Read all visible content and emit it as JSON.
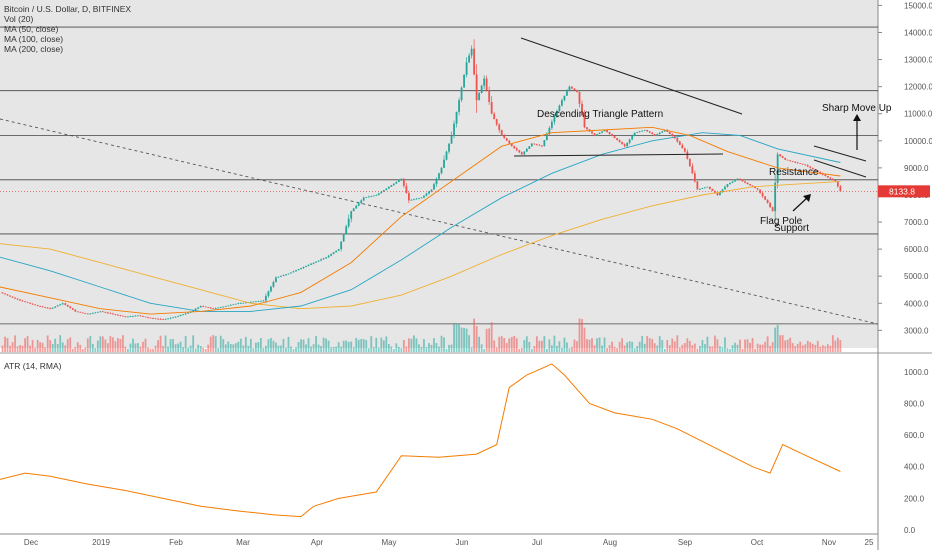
{
  "legend": {
    "symbol": "Bitcoin / U.S. Dollar, D, BITFINEX",
    "indicators": [
      "Vol (20)",
      "MA (50, close)",
      "MA (100, close)",
      "MA (200, close)"
    ]
  },
  "atr_label": "ATR (14, RMA)",
  "colors": {
    "price_bg": "#e6e6e6",
    "up": "#26a69a",
    "down": "#ef5350",
    "ma50": "#f57c00",
    "ma100": "#26a6c4",
    "ma200": "#f0b030",
    "atr": "#f57c00",
    "last_price": "#e53935"
  },
  "chart_data": [
    {
      "type": "candlestick",
      "title": "Bitcoin / U.S. Dollar, D, BITFINEX",
      "y_axis_ticks": [
        3000,
        4000,
        5000,
        6000,
        7000,
        8000,
        9000,
        10000,
        11000,
        12000,
        13000,
        14000,
        15000
      ],
      "y_axis_tick_labels": [
        "3000.0",
        "4000.0",
        "5000.0",
        "6000.0",
        "7000.0",
        "8000.0",
        "9000.0",
        "10000.0",
        "11000.0",
        "12000.0",
        "13000.0",
        "14000.0",
        "15000.0"
      ],
      "ylim": [
        2200,
        15200
      ],
      "x_axis_labels": [
        "Dec",
        "2019",
        "Feb",
        "Mar",
        "Apr",
        "May",
        "Jun",
        "Jul",
        "Aug",
        "Sep",
        "Oct",
        "Nov",
        "25"
      ],
      "last_price": "8133.8",
      "series_path": [
        [
          0,
          4400
        ],
        [
          8,
          4100
        ],
        [
          15,
          3900
        ],
        [
          20,
          3800
        ],
        [
          25,
          4000
        ],
        [
          30,
          3700
        ],
        [
          35,
          3600
        ],
        [
          40,
          3700
        ],
        [
          45,
          3600
        ],
        [
          50,
          3500
        ],
        [
          55,
          3550
        ],
        [
          60,
          3450
        ],
        [
          65,
          3400
        ],
        [
          70,
          3500
        ],
        [
          75,
          3650
        ],
        [
          80,
          3900
        ],
        [
          85,
          3800
        ],
        [
          90,
          3900
        ],
        [
          95,
          4000
        ],
        [
          100,
          4050
        ],
        [
          105,
          4100
        ],
        [
          110,
          4950
        ],
        [
          115,
          5100
        ],
        [
          120,
          5300
        ],
        [
          125,
          5500
        ],
        [
          130,
          5700
        ],
        [
          135,
          6000
        ],
        [
          140,
          7400
        ],
        [
          145,
          7900
        ],
        [
          150,
          8000
        ],
        [
          155,
          8300
        ],
        [
          160,
          8600
        ],
        [
          163,
          7800
        ],
        [
          168,
          7900
        ],
        [
          172,
          8200
        ],
        [
          176,
          9000
        ],
        [
          180,
          10200
        ],
        [
          183,
          11500
        ],
        [
          186,
          12900
        ],
        [
          188,
          13400
        ],
        [
          190,
          11500
        ],
        [
          193,
          12300
        ],
        [
          196,
          11000
        ],
        [
          200,
          10200
        ],
        [
          204,
          9800
        ],
        [
          208,
          9500
        ],
        [
          212,
          9900
        ],
        [
          216,
          9800
        ],
        [
          220,
          10700
        ],
        [
          224,
          11500
        ],
        [
          227,
          12000
        ],
        [
          230,
          11800
        ],
        [
          233,
          10500
        ],
        [
          237,
          10200
        ],
        [
          241,
          10400
        ],
        [
          245,
          10100
        ],
        [
          249,
          9800
        ],
        [
          253,
          10300
        ],
        [
          257,
          10400
        ],
        [
          261,
          10200
        ],
        [
          265,
          10400
        ],
        [
          269,
          10100
        ],
        [
          273,
          9600
        ],
        [
          276,
          8800
        ],
        [
          278,
          8200
        ],
        [
          282,
          8300
        ],
        [
          286,
          8000
        ],
        [
          290,
          8400
        ],
        [
          294,
          8600
        ],
        [
          298,
          8400
        ],
        [
          302,
          8200
        ],
        [
          306,
          7700
        ],
        [
          308,
          7400
        ],
        [
          310,
          9500
        ],
        [
          313,
          9300
        ],
        [
          317,
          9200
        ],
        [
          321,
          9100
        ],
        [
          325,
          8900
        ],
        [
          329,
          8700
        ],
        [
          333,
          8500
        ],
        [
          335,
          8133.8
        ]
      ],
      "ma50": [
        [
          0,
          4600
        ],
        [
          20,
          4200
        ],
        [
          40,
          3800
        ],
        [
          60,
          3600
        ],
        [
          80,
          3700
        ],
        [
          100,
          3900
        ],
        [
          120,
          4400
        ],
        [
          140,
          5500
        ],
        [
          160,
          7200
        ],
        [
          180,
          8500
        ],
        [
          200,
          9800
        ],
        [
          220,
          10300
        ],
        [
          240,
          10400
        ],
        [
          260,
          10500
        ],
        [
          275,
          10200
        ],
        [
          290,
          9600
        ],
        [
          310,
          9000
        ],
        [
          335,
          8700
        ]
      ],
      "ma100": [
        [
          0,
          5700
        ],
        [
          20,
          5200
        ],
        [
          40,
          4600
        ],
        [
          60,
          4000
        ],
        [
          80,
          3700
        ],
        [
          100,
          3700
        ],
        [
          120,
          3900
        ],
        [
          140,
          4500
        ],
        [
          160,
          5600
        ],
        [
          180,
          6800
        ],
        [
          200,
          7900
        ],
        [
          220,
          8800
        ],
        [
          240,
          9500
        ],
        [
          260,
          10000
        ],
        [
          280,
          10300
        ],
        [
          295,
          10200
        ],
        [
          310,
          9700
        ],
        [
          335,
          9200
        ]
      ],
      "ma200": [
        [
          0,
          6200
        ],
        [
          20,
          6000
        ],
        [
          40,
          5500
        ],
        [
          60,
          5000
        ],
        [
          80,
          4500
        ],
        [
          100,
          4000
        ],
        [
          120,
          3800
        ],
        [
          140,
          3900
        ],
        [
          160,
          4300
        ],
        [
          180,
          5000
        ],
        [
          200,
          5800
        ],
        [
          220,
          6500
        ],
        [
          240,
          7100
        ],
        [
          260,
          7600
        ],
        [
          280,
          8000
        ],
        [
          300,
          8300
        ],
        [
          335,
          8500
        ]
      ],
      "annotations": [
        "Descending Triangle Pattern",
        "Sharp Move Up",
        "Resistance",
        "Flag Pole",
        "Support"
      ]
    },
    {
      "type": "line",
      "title": "ATR (14, RMA)",
      "y_axis_ticks": [
        0,
        200,
        400,
        600,
        800,
        1000
      ],
      "y_axis_tick_labels": [
        "0.0",
        "200.0",
        "400.0",
        "600.0",
        "800.0",
        "1000.0"
      ],
      "ylim": [
        0,
        1100
      ],
      "values": [
        [
          0,
          320
        ],
        [
          10,
          360
        ],
        [
          20,
          340
        ],
        [
          35,
          290
        ],
        [
          50,
          250
        ],
        [
          65,
          200
        ],
        [
          80,
          150
        ],
        [
          95,
          120
        ],
        [
          110,
          95
        ],
        [
          120,
          85
        ],
        [
          125,
          150
        ],
        [
          135,
          200
        ],
        [
          150,
          240
        ],
        [
          160,
          470
        ],
        [
          175,
          460
        ],
        [
          190,
          480
        ],
        [
          198,
          540
        ],
        [
          203,
          900
        ],
        [
          210,
          980
        ],
        [
          220,
          1050
        ],
        [
          225,
          980
        ],
        [
          235,
          800
        ],
        [
          245,
          740
        ],
        [
          260,
          700
        ],
        [
          270,
          640
        ],
        [
          280,
          560
        ],
        [
          290,
          480
        ],
        [
          300,
          400
        ],
        [
          307,
          360
        ],
        [
          312,
          540
        ],
        [
          320,
          480
        ],
        [
          335,
          370
        ]
      ]
    }
  ]
}
